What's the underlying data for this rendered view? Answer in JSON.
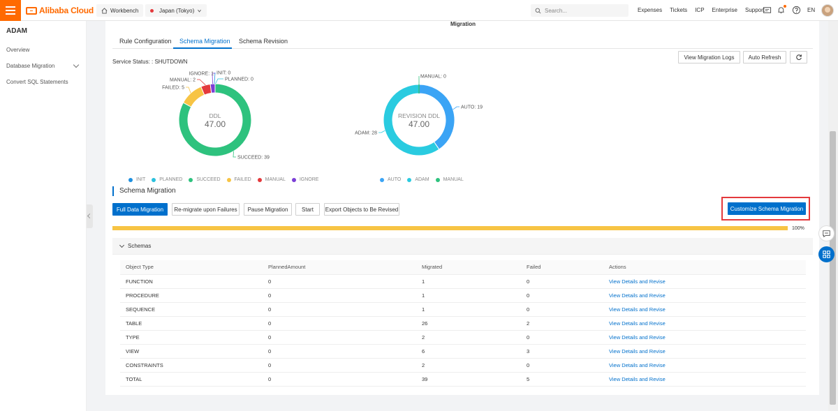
{
  "header": {
    "brand": "Alibaba Cloud",
    "workbench": "Workbench",
    "region": "Japan (Tokyo)",
    "search_placeholder": "Search...",
    "links": [
      "Expenses",
      "Tickets",
      "ICP",
      "Enterprise",
      "Support"
    ],
    "language": "EN"
  },
  "sidebar": {
    "title": "ADAM",
    "items": [
      {
        "label": "Overview"
      },
      {
        "label": "Database Migration"
      },
      {
        "label": "Convert SQL Statements"
      }
    ]
  },
  "page": {
    "title": "Migration",
    "tabs": [
      {
        "label": "Rule Configuration"
      },
      {
        "label": "Schema Migration"
      },
      {
        "label": "Schema Revision"
      }
    ],
    "service_status": "Service Status: : SHUTDOWN",
    "toolbar": {
      "view_logs": "View Migration Logs",
      "auto_refresh": "Auto Refresh"
    }
  },
  "colors": {
    "init": "#1e90e0",
    "planned": "#2bc0dd",
    "succeed": "#2ec27e",
    "failed": "#f7c444",
    "manual": "#e4393c",
    "ignore": "#7b3fd6",
    "auto": "#3ba4f5",
    "adam": "#2acbe0",
    "manual2": "#2ec27e",
    "accent": "#0070cc"
  },
  "chart_data": [
    {
      "type": "pie",
      "center_label": "DDL",
      "center_value": "47.00",
      "slices": [
        {
          "name": "INIT",
          "value": 0,
          "label": "INIT: 0"
        },
        {
          "name": "PLANNED",
          "value": 0,
          "label": "PLANNED: 0"
        },
        {
          "name": "SUCCEED",
          "value": 39,
          "label": "SUCCEED: 39"
        },
        {
          "name": "FAILED",
          "value": 5,
          "label": "FAILED: 5"
        },
        {
          "name": "MANUAL",
          "value": 2,
          "label": "MANUAL: 2"
        },
        {
          "name": "IGNORE",
          "value": 1,
          "label": "IGNORE: 1"
        }
      ],
      "legend": [
        "INIT",
        "PLANNED",
        "SUCCEED",
        "FAILED",
        "MANUAL",
        "IGNORE"
      ],
      "legend_placement": "bottom"
    },
    {
      "type": "pie",
      "center_label": "REVISION DDL",
      "center_value": "47.00",
      "slices": [
        {
          "name": "AUTO",
          "value": 19,
          "label": "AUTO: 19"
        },
        {
          "name": "ADAM",
          "value": 28,
          "label": "ADAM: 28"
        },
        {
          "name": "MANUAL",
          "value": 0,
          "label": "MANUAL: 0"
        }
      ],
      "legend": [
        "AUTO",
        "ADAM",
        "MANUAL"
      ],
      "legend_placement": "bottom"
    }
  ],
  "schema_migration": {
    "title": "Schema Migration",
    "buttons": {
      "full": "Full Data Migration",
      "remigrate": "Re-migrate upon Failures",
      "pause": "Pause Migration",
      "start": "Start",
      "export": "Export Objects to Be Revised",
      "customize": "Customize Schema Migration"
    },
    "progress": 100,
    "progress_label": "100%"
  },
  "schemas": {
    "title": "Schemas",
    "columns": [
      "Object Type",
      "PlannedAmount",
      "Migrated",
      "Failed",
      "Actions"
    ],
    "rows": [
      {
        "type": "FUNCTION",
        "planned": "0",
        "migrated": "1",
        "failed": "0",
        "action": "View Details and Revise"
      },
      {
        "type": "PROCEDURE",
        "planned": "0",
        "migrated": "1",
        "failed": "0",
        "action": "View Details and Revise"
      },
      {
        "type": "SEQUENCE",
        "planned": "0",
        "migrated": "1",
        "failed": "0",
        "action": "View Details and Revise"
      },
      {
        "type": "TABLE",
        "planned": "0",
        "migrated": "26",
        "failed": "2",
        "action": "View Details and Revise"
      },
      {
        "type": "TYPE",
        "planned": "0",
        "migrated": "2",
        "failed": "0",
        "action": "View Details and Revise"
      },
      {
        "type": "VIEW",
        "planned": "0",
        "migrated": "6",
        "failed": "3",
        "action": "View Details and Revise"
      },
      {
        "type": "CONSTRAINTS",
        "planned": "0",
        "migrated": "2",
        "failed": "0",
        "action": "View Details and Revise"
      },
      {
        "type": "TOTAL",
        "planned": "0",
        "migrated": "39",
        "failed": "5",
        "action": "View Details and Revise"
      }
    ]
  }
}
